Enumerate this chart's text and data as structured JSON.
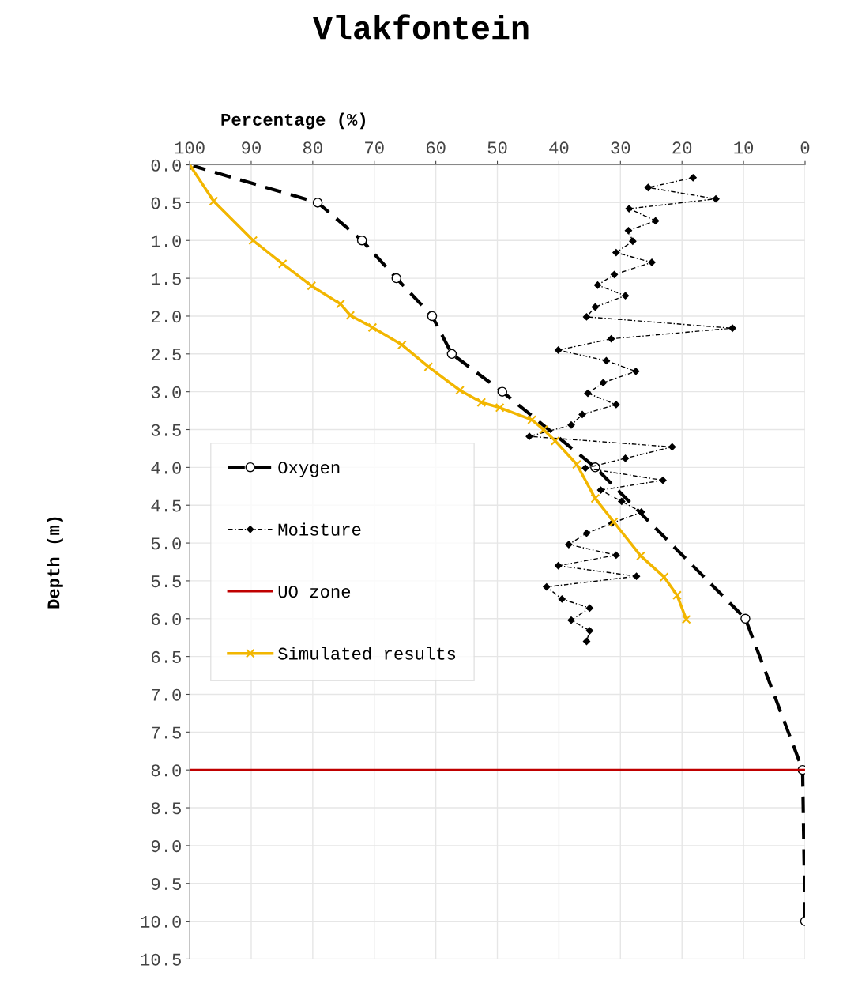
{
  "chart_data": {
    "type": "line",
    "title": "Vlakfontein",
    "xlabel": "Percentage (%)",
    "ylabel": "Depth (m)",
    "xlim": [
      100,
      0
    ],
    "xticks": [
      100,
      90,
      80,
      70,
      60,
      50,
      40,
      30,
      20,
      10,
      0
    ],
    "ylim": [
      10.5,
      0
    ],
    "yticks": [
      {
        "value": 0,
        "label": "0.0"
      },
      0.5,
      {
        "value": 1,
        "label": "1.0"
      },
      1.5,
      {
        "value": 2,
        "label": "2.0"
      },
      2.5,
      {
        "value": 3,
        "label": "3.0"
      },
      3.5,
      {
        "value": 4,
        "label": "4.0"
      },
      4.5,
      {
        "value": 5,
        "label": "5.0"
      },
      5.5,
      {
        "value": 6,
        "label": "6.0"
      },
      6.5,
      {
        "value": 7,
        "label": "7.0"
      },
      7.5,
      {
        "value": 8,
        "label": "8.0"
      },
      8.5,
      {
        "value": 9,
        "label": "9.0"
      },
      9.5,
      {
        "value": 10,
        "label": "10.0"
      },
      10.5
    ],
    "grid": true,
    "legend": "left",
    "series": [
      {
        "name": "Oxygen",
        "color": "#000000",
        "marker": "circle",
        "line_style": "dashed",
        "x": [
          100,
          79.2,
          72,
          66.4,
          60.6,
          57.4,
          49.2,
          34.1,
          9.7,
          0.4,
          0
        ],
        "values": [
          0,
          0.5,
          1.0,
          1.5,
          2.0,
          2.5,
          3.0,
          4.0,
          6.0,
          8.0,
          10.0
        ]
      },
      {
        "name": "Moisture",
        "color": "#000000",
        "marker": "diamond",
        "line_style": "dotted",
        "x": [
          18.2,
          25.5,
          14.5,
          28.6,
          24.3,
          28.7,
          28.0,
          30.7,
          24.9,
          31.0,
          33.7,
          29.2,
          34.1,
          35.5,
          11.8,
          31.5,
          40.1,
          32.3,
          27.5,
          32.8,
          35.3,
          30.7,
          36.2,
          38.0,
          44.8,
          21.6,
          29.2,
          35.7,
          23.1,
          33.2,
          29.8,
          26.6,
          31.4,
          35.5,
          38.4,
          30.7,
          40.1,
          27.4,
          42.0,
          39.5,
          35.0,
          38.0,
          35.0,
          35.5
        ],
        "values": [
          0.17,
          0.3,
          0.45,
          0.58,
          0.74,
          0.87,
          1.01,
          1.16,
          1.29,
          1.45,
          1.59,
          1.73,
          1.88,
          2.01,
          2.16,
          2.3,
          2.45,
          2.59,
          2.73,
          2.88,
          3.02,
          3.17,
          3.3,
          3.44,
          3.59,
          3.73,
          3.88,
          4.01,
          4.17,
          4.3,
          4.45,
          4.59,
          4.74,
          4.87,
          5.02,
          5.16,
          5.3,
          5.44,
          5.58,
          5.74,
          5.86,
          6.02,
          6.16,
          6.3
        ]
      },
      {
        "name": "Simulated results",
        "color": "#f2b600",
        "marker": "cross",
        "line_style": "solid",
        "x": [
          100,
          96.1,
          89.7,
          84.9,
          80.2,
          75.5,
          73.9,
          70.3,
          65.5,
          61.2,
          56.1,
          52.6,
          49.6,
          44.4,
          42.5,
          40.6,
          37.1,
          34.1,
          31.1,
          26.7,
          22.9,
          20.8,
          19.3
        ],
        "values": [
          0,
          0.48,
          1.0,
          1.31,
          1.6,
          1.84,
          1.99,
          2.15,
          2.38,
          2.67,
          2.98,
          3.14,
          3.21,
          3.37,
          3.5,
          3.65,
          3.96,
          4.41,
          4.72,
          5.17,
          5.45,
          5.69,
          6.01
        ]
      }
    ],
    "ref_lines": [
      {
        "axis": "y",
        "value": 8.0,
        "label": "UO zone",
        "color": "#c00000",
        "line_style": "solid"
      }
    ]
  }
}
